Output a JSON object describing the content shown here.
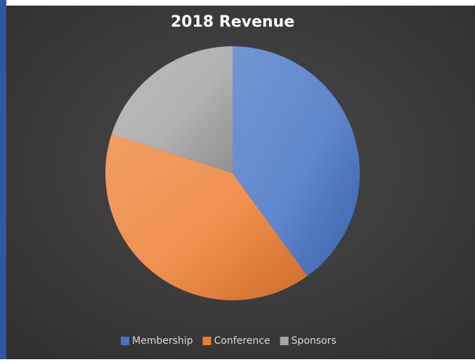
{
  "chart_data": {
    "type": "pie",
    "title": "2018 Revenue",
    "categories": [
      "Membership",
      "Conference",
      "Sponsors"
    ],
    "values": [
      40,
      40,
      20
    ],
    "colors": [
      "#4472c4",
      "#ed7d31",
      "#a5a5a5"
    ],
    "legend": "bottom"
  }
}
